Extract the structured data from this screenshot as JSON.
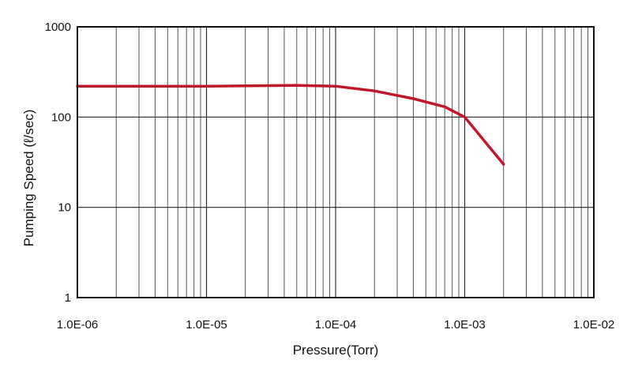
{
  "chart_data": {
    "type": "line",
    "title": "",
    "xlabel": "Pressure(Torr)",
    "ylabel": "Pumping Speed (ℓ/sec)",
    "x_scale": "log",
    "y_scale": "log",
    "xlim": [
      1e-06,
      0.01
    ],
    "ylim": [
      1,
      1000
    ],
    "grid": true,
    "x_ticks": [
      "1.0E-06",
      "1.0E-05",
      "1.0E-04",
      "1.0E-03",
      "1.0E-02"
    ],
    "y_ticks": [
      "1",
      "10",
      "100",
      "1000"
    ],
    "series": [
      {
        "color": "#c0172a",
        "x": [
          1e-06,
          1e-05,
          5e-05,
          0.0001,
          0.0002,
          0.0004,
          0.0007,
          0.001,
          0.002
        ],
        "y": [
          220,
          220,
          225,
          220,
          195,
          160,
          130,
          100,
          30
        ]
      }
    ]
  }
}
